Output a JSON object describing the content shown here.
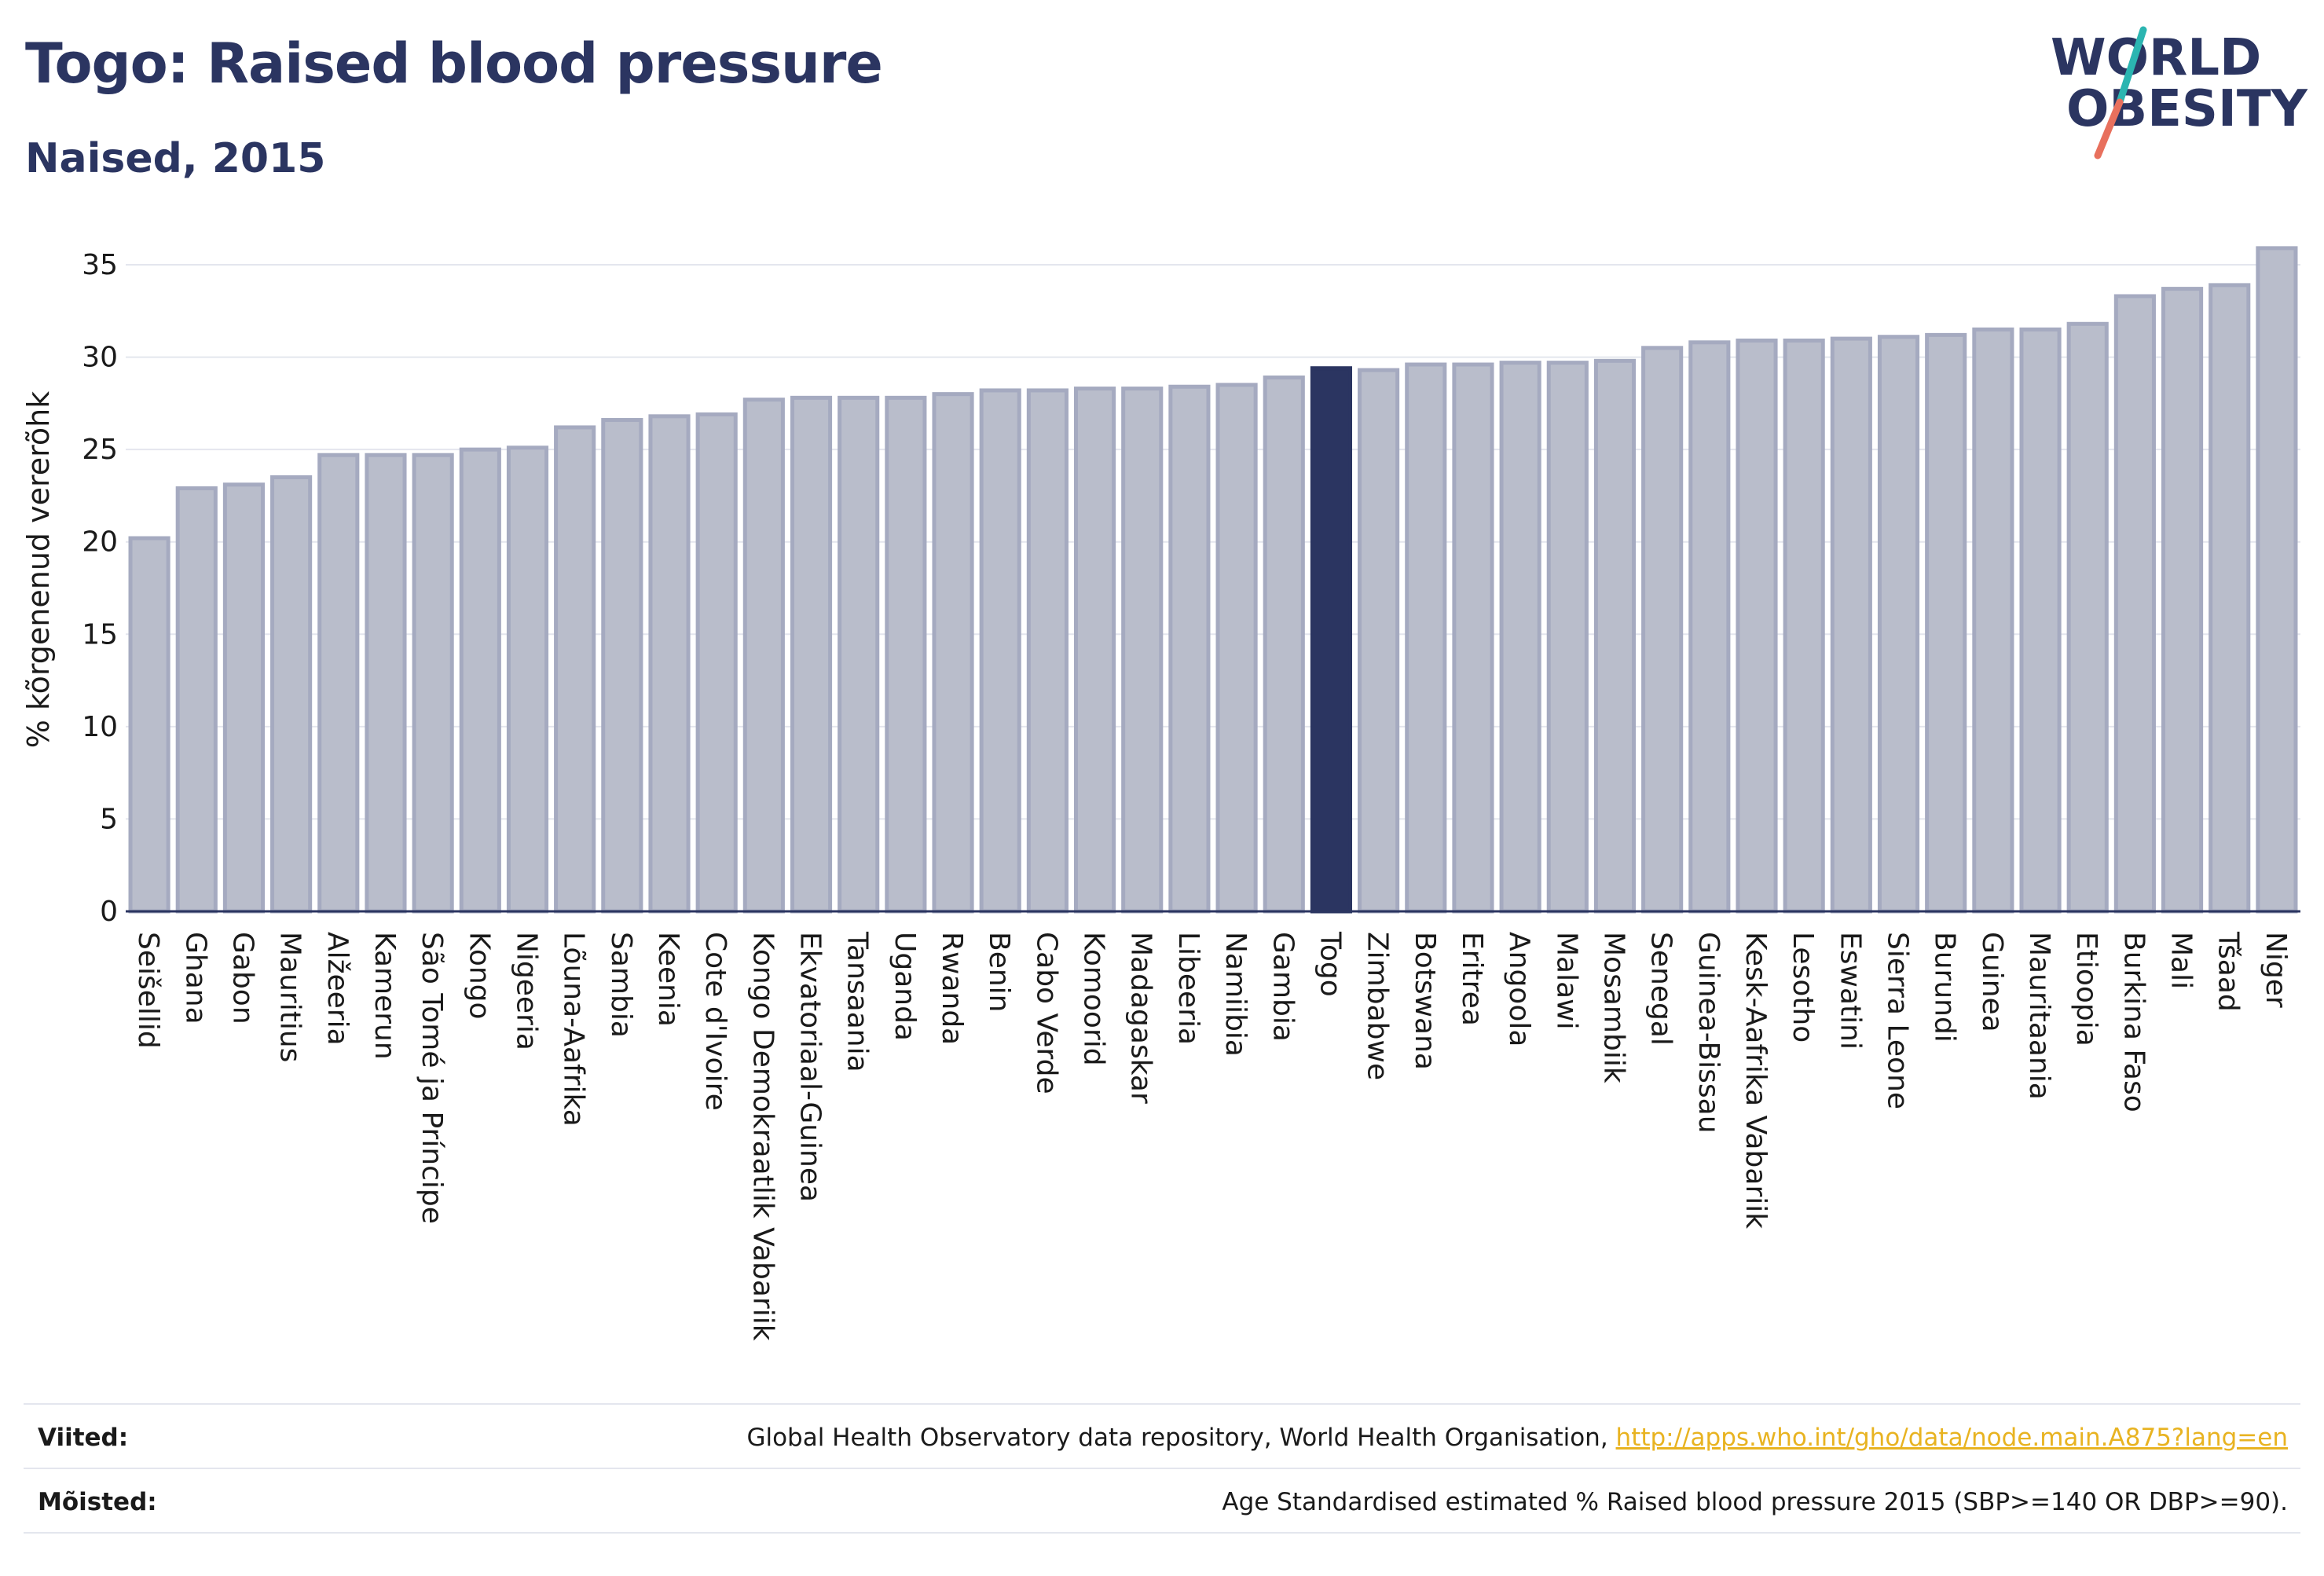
{
  "title": "Togo: Raised blood pressure",
  "subtitle": "Naised, 2015",
  "logo": {
    "line1": "WORLD",
    "line2": "OBESITY"
  },
  "footer": {
    "sources_label": "Viited:",
    "sources_text": "Global Health Observatory data repository, World Health Organisation, ",
    "sources_link": "http://apps.who.int/gho/data/node.main.A875?lang=en",
    "definitions_label": "Mõisted:",
    "definitions_text": "Age Standardised estimated % Raised blood pressure 2015 (SBP>=140 OR DBP>=90)."
  },
  "colors": {
    "bar": "#b9bdcb",
    "bar_stroke": "#a5aac0",
    "highlight": "#2b3561",
    "axis_text": "#1a1a1a",
    "grid": "#e4e6ee",
    "logo_teal": "#2bb5b1",
    "logo_red": "#e8705d"
  },
  "chart_data": {
    "type": "bar",
    "ylabel": "% kõrgenenud vererõhk",
    "xlabel": "",
    "ylim": [
      0,
      37
    ],
    "yticks": [
      0,
      5,
      10,
      15,
      20,
      25,
      30,
      35
    ],
    "grid": true,
    "highlight": "Togo",
    "categories": [
      "Seišellid",
      "Ghana",
      "Gabon",
      "Mauritius",
      "Alžeeria",
      "Kamerun",
      "São Tomé ja Príncipe",
      "Kongo",
      "Nigeeria",
      "Lõuna-Aafrika",
      "Sambia",
      "Keenia",
      "Cote d'Ivoire",
      "Kongo Demokraatlik Vabariik",
      "Ekvatoriaal-Guinea",
      "Tansaania",
      "Uganda",
      "Rwanda",
      "Benin",
      "Cabo Verde",
      "Komoorid",
      "Madagaskar",
      "Libeeria",
      "Namiibia",
      "Gambia",
      "Togo",
      "Zimbabwe",
      "Botswana",
      "Eritrea",
      "Angoola",
      "Malawi",
      "Mosambiik",
      "Senegal",
      "Guinea-Bissau",
      "Kesk-Aafrika Vabariik",
      "Lesotho",
      "Eswatini",
      "Sierra Leone",
      "Burundi",
      "Guinea",
      "Mauritaania",
      "Etioopia",
      "Burkina Faso",
      "Mali",
      "Tšaad",
      "Niger"
    ],
    "values": [
      20.2,
      22.9,
      23.1,
      23.5,
      24.7,
      24.7,
      24.7,
      25.0,
      25.1,
      26.2,
      26.6,
      26.8,
      26.9,
      27.7,
      27.8,
      27.8,
      27.8,
      28.0,
      28.2,
      28.2,
      28.3,
      28.3,
      28.4,
      28.5,
      28.9,
      29.4,
      29.3,
      29.6,
      29.6,
      29.7,
      29.7,
      29.8,
      30.5,
      30.8,
      30.9,
      30.9,
      31.0,
      31.1,
      31.2,
      31.5,
      31.5,
      31.8,
      33.3,
      33.7,
      33.9,
      35.9
    ]
  }
}
